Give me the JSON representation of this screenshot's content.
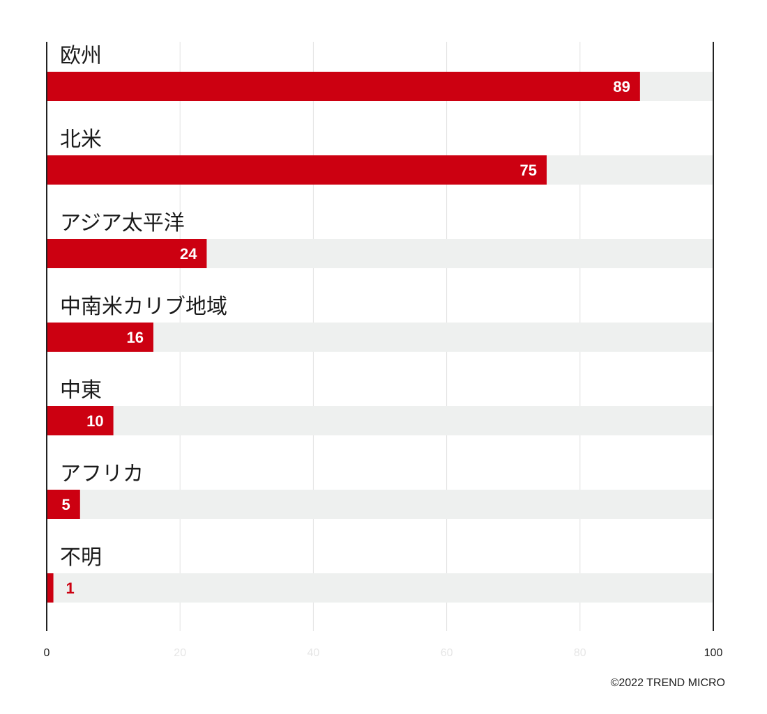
{
  "chart_data": {
    "type": "bar",
    "orientation": "horizontal",
    "categories": [
      "欧州",
      "北米",
      "アジア太平洋",
      "中南米カリブ地域",
      "中東",
      "アフリカ",
      "不明"
    ],
    "values": [
      89,
      75,
      24,
      16,
      10,
      5,
      1
    ],
    "xlim": [
      0,
      100
    ],
    "x_ticks": [
      "0",
      "20",
      "40",
      "60",
      "80",
      "100"
    ],
    "grid": true,
    "data_labels": true
  },
  "colors": {
    "bar": "#cc0011",
    "track": "#eef0ef",
    "grid": "#e2e2e2",
    "axis": "#222222",
    "label_on_bar": "#ffffff",
    "label_off_bar": "#cc0011"
  },
  "footer": {
    "copyright": "©2022 TREND MICRO"
  }
}
